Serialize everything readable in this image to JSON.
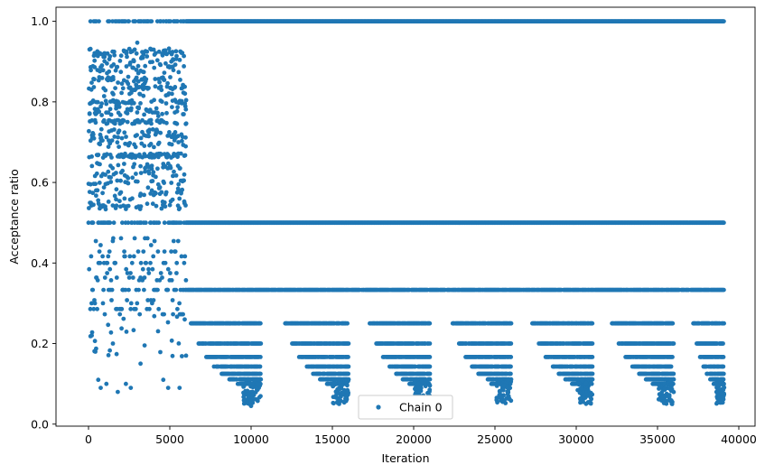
{
  "chart_data": {
    "type": "scatter",
    "title": "",
    "xlabel": "Iteration",
    "ylabel": "Acceptance ratio",
    "xlim": [
      -2000,
      41000
    ],
    "ylim": [
      -0.005,
      1.035
    ],
    "xticks": [
      0,
      5000,
      10000,
      15000,
      20000,
      25000,
      30000,
      35000,
      40000
    ],
    "yticks": [
      0.0,
      0.2,
      0.4,
      0.6,
      0.8,
      1.0
    ],
    "xtick_labels": [
      "0",
      "5000",
      "10000",
      "15000",
      "20000",
      "25000",
      "30000",
      "35000",
      "40000"
    ],
    "ytick_labels": [
      "0.0",
      "0.2",
      "0.4",
      "0.6",
      "0.8",
      "1.0"
    ],
    "grid": false,
    "legend_position": "bottom-center",
    "series": [
      {
        "name": "Chain 0",
        "color": "#1f77b4",
        "marker": "circle",
        "x_range": [
          0,
          39100
        ],
        "description_levels": {
          "constant": [
            1.0,
            0.5
          ],
          "late_block_levels": [
            0.333,
            0.25,
            0.2,
            0.167,
            0.143,
            0.125,
            0.111,
            0.1
          ],
          "early_segment_end": 6000
        },
        "points": [
          [
            0,
            1.0
          ],
          [
            500,
            0.917
          ],
          [
            1000,
            0.909
          ],
          [
            1500,
            0.833
          ],
          [
            2000,
            0.75
          ],
          [
            3000,
            0.947
          ],
          [
            4000,
            0.6
          ],
          [
            5000,
            0.92
          ],
          [
            6000,
            0.52
          ],
          [
            6200,
            1.0
          ],
          [
            10000,
            0.045
          ],
          [
            15800,
            0.063
          ],
          [
            25100,
            0.06
          ],
          [
            35900,
            0.05
          ],
          [
            39100,
            0.091
          ]
        ]
      }
    ]
  },
  "legend": {
    "label": "Chain 0"
  }
}
